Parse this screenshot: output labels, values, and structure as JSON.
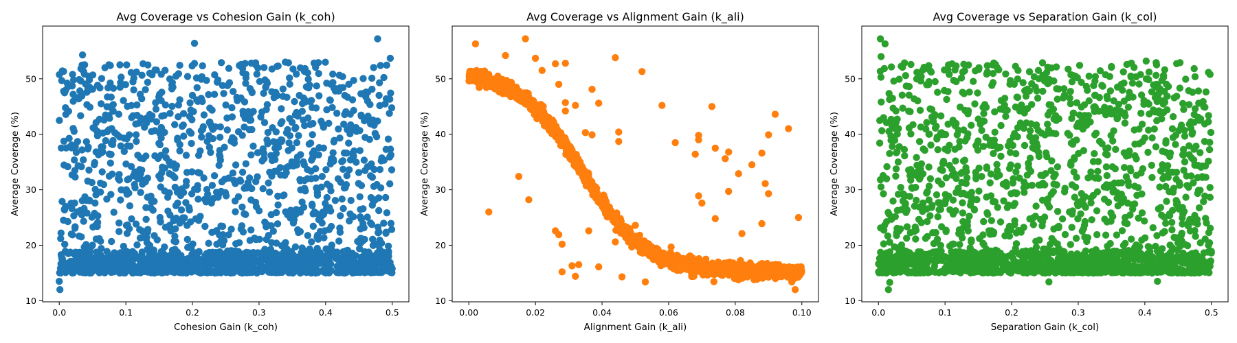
{
  "chart_data": [
    {
      "type": "scatter",
      "id": "coh",
      "title": "Avg Coverage vs Cohesion Gain (k_coh)",
      "xlabel": "Cohesion Gain (k_coh)",
      "ylabel": "Average Coverage (%)",
      "color": "#1f77b4",
      "xlim": [
        -0.025,
        0.525
      ],
      "ylim": [
        9.8,
        59.5
      ],
      "xticks": [
        0.0,
        0.1,
        0.2,
        0.3,
        0.4,
        0.5
      ],
      "xtick_labels": [
        "0.0",
        "0.1",
        "0.2",
        "0.3",
        "0.4",
        "0.5"
      ],
      "yticks": [
        10,
        20,
        30,
        40,
        50
      ],
      "ytick_labels": [
        "10",
        "20",
        "30",
        "40",
        "50"
      ],
      "pattern": "uniform",
      "point_count": 2000,
      "x_range": [
        0.0,
        0.5
      ],
      "band_low": [
        15,
        19
      ],
      "scatter_range": [
        15,
        53
      ],
      "outliers": [
        [
          0.001,
          12.0
        ],
        [
          0.0,
          13.5
        ],
        [
          0.002,
          15.0
        ],
        [
          0.035,
          54.3
        ],
        [
          0.203,
          56.4
        ],
        [
          0.478,
          57.2
        ],
        [
          0.497,
          53.7
        ]
      ]
    },
    {
      "type": "scatter",
      "id": "ali",
      "title": "Avg Coverage vs Alignment Gain (k_ali)",
      "xlabel": "Alignment Gain (k_ali)",
      "ylabel": "Average Coverage (%)",
      "color": "#ff7f0e",
      "xlim": [
        -0.005,
        0.105
      ],
      "ylim": [
        9.8,
        59.5
      ],
      "xticks": [
        0.0,
        0.02,
        0.04,
        0.06,
        0.08,
        0.1
      ],
      "xtick_labels": [
        "0.00",
        "0.02",
        "0.04",
        "0.06",
        "0.08",
        "0.10"
      ],
      "yticks": [
        10,
        20,
        30,
        40,
        50
      ],
      "ytick_labels": [
        "10",
        "20",
        "30",
        "40",
        "50"
      ],
      "pattern": "sigmoid",
      "point_count": 2000,
      "x_range": [
        0.0,
        0.1
      ],
      "curve": {
        "high": 51.5,
        "low": 15.2,
        "midpoint": 0.034,
        "scale": 0.0095
      },
      "outliers": [
        [
          0.002,
          56.3
        ],
        [
          0.006,
          26.0
        ],
        [
          0.011,
          54.2
        ],
        [
          0.015,
          32.4
        ],
        [
          0.017,
          57.2
        ],
        [
          0.018,
          28.2
        ],
        [
          0.02,
          53.7
        ],
        [
          0.022,
          51.5
        ],
        [
          0.026,
          52.7
        ],
        [
          0.026,
          22.6
        ],
        [
          0.027,
          49.0
        ],
        [
          0.027,
          21.9
        ],
        [
          0.028,
          20.2
        ],
        [
          0.028,
          15.2
        ],
        [
          0.029,
          52.8
        ],
        [
          0.029,
          45.7
        ],
        [
          0.029,
          44.2
        ],
        [
          0.031,
          16.3
        ],
        [
          0.032,
          45.2
        ],
        [
          0.032,
          14.4
        ],
        [
          0.033,
          16.5
        ],
        [
          0.035,
          40.3
        ],
        [
          0.036,
          22.6
        ],
        [
          0.037,
          39.9
        ],
        [
          0.037,
          48.1
        ],
        [
          0.039,
          45.6
        ],
        [
          0.039,
          16.1
        ],
        [
          0.044,
          53.8
        ],
        [
          0.044,
          20.6
        ],
        [
          0.045,
          38.7
        ],
        [
          0.045,
          40.4
        ],
        [
          0.046,
          14.3
        ],
        [
          0.05,
          23.6
        ],
        [
          0.052,
          51.3
        ],
        [
          0.053,
          13.4
        ],
        [
          0.058,
          45.2
        ],
        [
          0.062,
          38.5
        ],
        [
          0.068,
          36.4
        ],
        [
          0.069,
          28.9
        ],
        [
          0.069,
          39.0
        ],
        [
          0.069,
          39.8
        ],
        [
          0.07,
          27.6
        ],
        [
          0.073,
          45.0
        ],
        [
          0.074,
          37.5
        ],
        [
          0.074,
          24.8
        ],
        [
          0.077,
          35.6
        ],
        [
          0.078,
          29.7
        ],
        [
          0.078,
          36.8
        ],
        [
          0.081,
          32.9
        ],
        [
          0.082,
          22.1
        ],
        [
          0.085,
          34.5
        ],
        [
          0.088,
          23.9
        ],
        [
          0.088,
          36.6
        ],
        [
          0.089,
          31.1
        ],
        [
          0.09,
          39.9
        ],
        [
          0.09,
          29.3
        ],
        [
          0.092,
          43.6
        ],
        [
          0.096,
          41.0
        ],
        [
          0.099,
          25.0
        ],
        [
          0.097,
          13.4
        ],
        [
          0.098,
          12.0
        ]
      ]
    },
    {
      "type": "scatter",
      "id": "col",
      "title": "Avg Coverage vs Separation Gain (k_col)",
      "xlabel": "Separation Gain (k_col)",
      "ylabel": "Average Coverage (%)",
      "color": "#2ca02c",
      "xlim": [
        -0.025,
        0.525
      ],
      "ylim": [
        9.8,
        59.5
      ],
      "xticks": [
        0.0,
        0.1,
        0.2,
        0.3,
        0.4,
        0.5
      ],
      "xtick_labels": [
        "0.0",
        "0.1",
        "0.2",
        "0.3",
        "0.4",
        "0.5"
      ],
      "yticks": [
        10,
        20,
        30,
        40,
        50
      ],
      "ytick_labels": [
        "10",
        "20",
        "30",
        "40",
        "50"
      ],
      "pattern": "uniform",
      "point_count": 2000,
      "x_range": [
        0.0,
        0.5
      ],
      "band_low": [
        15,
        19
      ],
      "scatter_range": [
        15,
        53
      ],
      "outliers": [
        [
          0.003,
          57.2
        ],
        [
          0.01,
          56.3
        ],
        [
          0.004,
          54.0
        ],
        [
          0.015,
          12.0
        ],
        [
          0.017,
          13.3
        ],
        [
          0.256,
          13.4
        ],
        [
          0.419,
          13.5
        ],
        [
          0.402,
          53.2
        ]
      ]
    }
  ]
}
